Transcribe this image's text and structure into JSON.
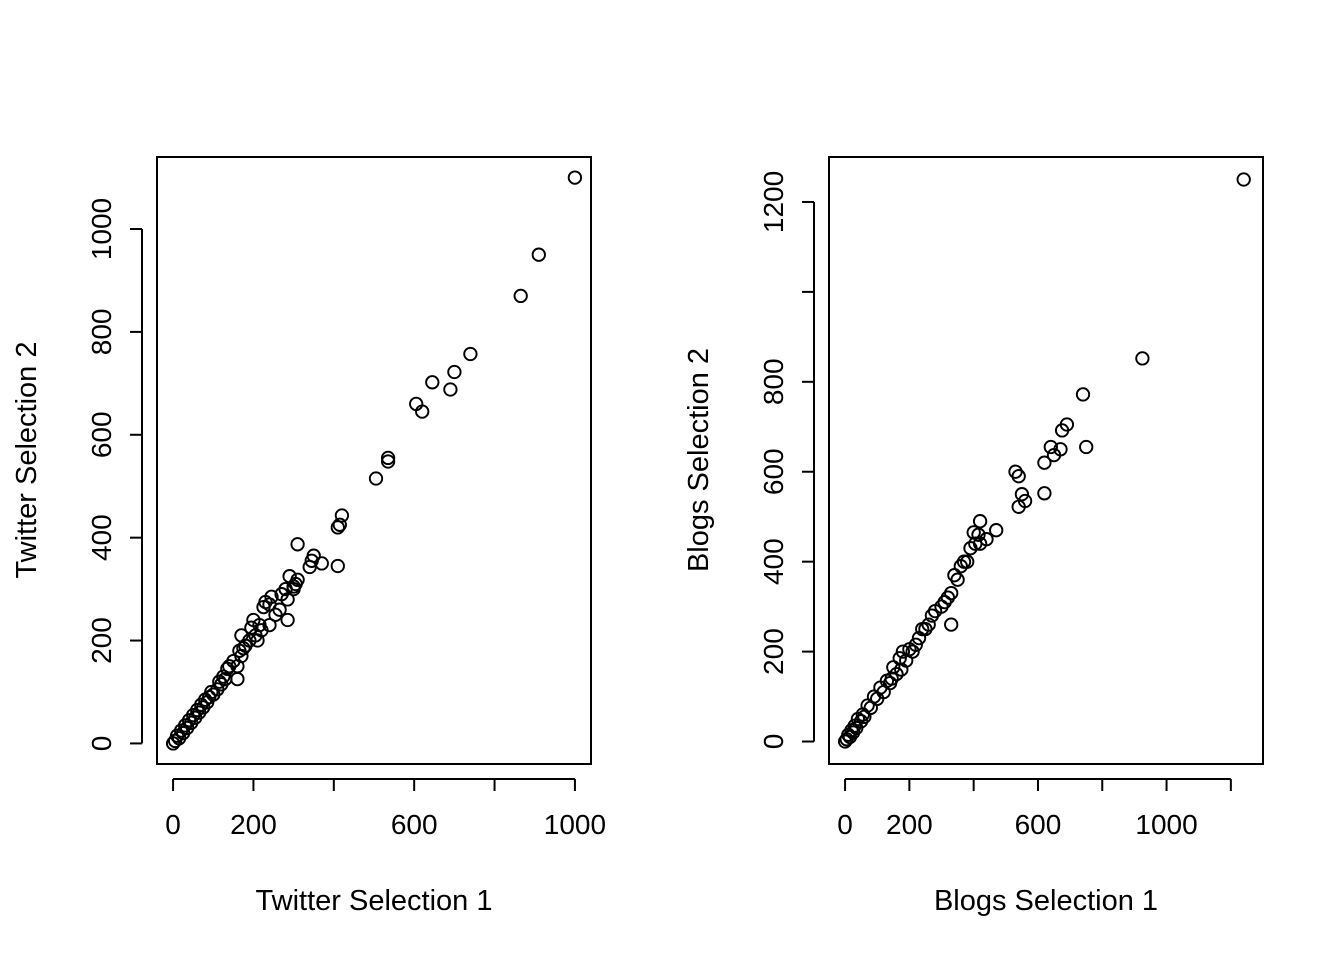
{
  "chart_data": [
    {
      "type": "scatter",
      "xlabel": "Twitter Selection 1",
      "ylabel": "Twitter Selection 2",
      "xlim": [
        -40,
        1040
      ],
      "ylim": [
        -40,
        1140
      ],
      "xticks": [
        0,
        200,
        400,
        600,
        800,
        1000
      ],
      "xtick_labels": [
        "0",
        "200",
        "",
        "600",
        "",
        "1000"
      ],
      "yticks": [
        0,
        200,
        400,
        600,
        800,
        1000
      ],
      "ytick_labels": [
        "0",
        "200",
        "400",
        "600",
        "800",
        "1000"
      ],
      "grid": false,
      "marker": "open-circle",
      "points": [
        [
          1000,
          1100
        ],
        [
          910,
          950
        ],
        [
          865,
          870
        ],
        [
          740,
          757
        ],
        [
          700,
          722
        ],
        [
          690,
          688
        ],
        [
          645,
          702
        ],
        [
          605,
          660
        ],
        [
          620,
          645
        ],
        [
          535,
          555
        ],
        [
          535,
          548
        ],
        [
          505,
          515
        ],
        [
          420,
          443
        ],
        [
          415,
          425
        ],
        [
          410,
          420
        ],
        [
          410,
          345
        ],
        [
          370,
          350
        ],
        [
          350,
          365
        ],
        [
          345,
          355
        ],
        [
          340,
          343
        ],
        [
          310,
          387
        ],
        [
          310,
          318
        ],
        [
          305,
          310
        ],
        [
          300,
          305
        ],
        [
          300,
          300
        ],
        [
          290,
          325
        ],
        [
          280,
          300
        ],
        [
          270,
          290
        ],
        [
          285,
          280
        ],
        [
          285,
          240
        ],
        [
          265,
          260
        ],
        [
          255,
          250
        ],
        [
          245,
          285
        ],
        [
          240,
          270
        ],
        [
          240,
          230
        ],
        [
          230,
          275
        ],
        [
          225,
          265
        ],
        [
          220,
          220
        ],
        [
          215,
          230
        ],
        [
          210,
          200
        ],
        [
          205,
          210
        ],
        [
          200,
          240
        ],
        [
          195,
          225
        ],
        [
          190,
          200
        ],
        [
          180,
          190
        ],
        [
          175,
          185
        ],
        [
          170,
          210
        ],
        [
          170,
          170
        ],
        [
          165,
          180
        ],
        [
          160,
          150
        ],
        [
          160,
          125
        ],
        [
          150,
          160
        ],
        [
          140,
          150
        ],
        [
          135,
          145
        ],
        [
          130,
          125
        ],
        [
          125,
          130
        ],
        [
          120,
          115
        ],
        [
          115,
          120
        ],
        [
          110,
          105
        ],
        [
          100,
          95
        ],
        [
          95,
          100
        ],
        [
          90,
          90
        ],
        [
          85,
          80
        ],
        [
          80,
          85
        ],
        [
          75,
          70
        ],
        [
          70,
          75
        ],
        [
          65,
          60
        ],
        [
          60,
          65
        ],
        [
          55,
          50
        ],
        [
          50,
          55
        ],
        [
          45,
          40
        ],
        [
          40,
          45
        ],
        [
          35,
          30
        ],
        [
          30,
          35
        ],
        [
          25,
          20
        ],
        [
          20,
          25
        ],
        [
          15,
          10
        ],
        [
          10,
          15
        ],
        [
          5,
          5
        ],
        [
          0,
          0
        ]
      ]
    },
    {
      "type": "scatter",
      "xlabel": "Blogs Selection 1",
      "ylabel": "Blogs Selection 2",
      "xlim": [
        -50,
        1300
      ],
      "ylim": [
        -50,
        1300
      ],
      "xticks": [
        0,
        200,
        400,
        600,
        800,
        1000,
        1200
      ],
      "xtick_labels": [
        "0",
        "200",
        "",
        "600",
        "",
        "1000",
        ""
      ],
      "yticks": [
        0,
        200,
        400,
        600,
        800,
        1000,
        1200
      ],
      "ytick_labels": [
        "0",
        "200",
        "400",
        "600",
        "800",
        "",
        "1200"
      ],
      "grid": false,
      "marker": "open-circle",
      "points": [
        [
          1240,
          1250
        ],
        [
          925,
          852
        ],
        [
          740,
          772
        ],
        [
          690,
          705
        ],
        [
          675,
          692
        ],
        [
          670,
          650
        ],
        [
          640,
          655
        ],
        [
          750,
          655
        ],
        [
          650,
          637
        ],
        [
          620,
          620
        ],
        [
          620,
          552
        ],
        [
          530,
          600
        ],
        [
          540,
          590
        ],
        [
          550,
          550
        ],
        [
          560,
          535
        ],
        [
          540,
          522
        ],
        [
          470,
          470
        ],
        [
          440,
          450
        ],
        [
          420,
          490
        ],
        [
          415,
          460
        ],
        [
          400,
          465
        ],
        [
          420,
          440
        ],
        [
          405,
          440
        ],
        [
          390,
          430
        ],
        [
          380,
          400
        ],
        [
          370,
          400
        ],
        [
          360,
          390
        ],
        [
          350,
          360
        ],
        [
          340,
          370
        ],
        [
          330,
          330
        ],
        [
          320,
          320
        ],
        [
          330,
          260
        ],
        [
          310,
          310
        ],
        [
          300,
          300
        ],
        [
          280,
          290
        ],
        [
          270,
          280
        ],
        [
          260,
          260
        ],
        [
          250,
          250
        ],
        [
          240,
          250
        ],
        [
          230,
          230
        ],
        [
          220,
          215
        ],
        [
          210,
          200
        ],
        [
          200,
          205
        ],
        [
          190,
          180
        ],
        [
          180,
          200
        ],
        [
          175,
          160
        ],
        [
          170,
          185
        ],
        [
          160,
          150
        ],
        [
          150,
          165
        ],
        [
          145,
          140
        ],
        [
          140,
          130
        ],
        [
          130,
          135
        ],
        [
          120,
          110
        ],
        [
          110,
          120
        ],
        [
          100,
          95
        ],
        [
          90,
          100
        ],
        [
          80,
          75
        ],
        [
          70,
          80
        ],
        [
          60,
          55
        ],
        [
          55,
          60
        ],
        [
          50,
          45
        ],
        [
          40,
          50
        ],
        [
          35,
          30
        ],
        [
          30,
          35
        ],
        [
          25,
          20
        ],
        [
          20,
          25
        ],
        [
          15,
          10
        ],
        [
          10,
          15
        ],
        [
          5,
          5
        ],
        [
          0,
          0
        ]
      ]
    }
  ]
}
